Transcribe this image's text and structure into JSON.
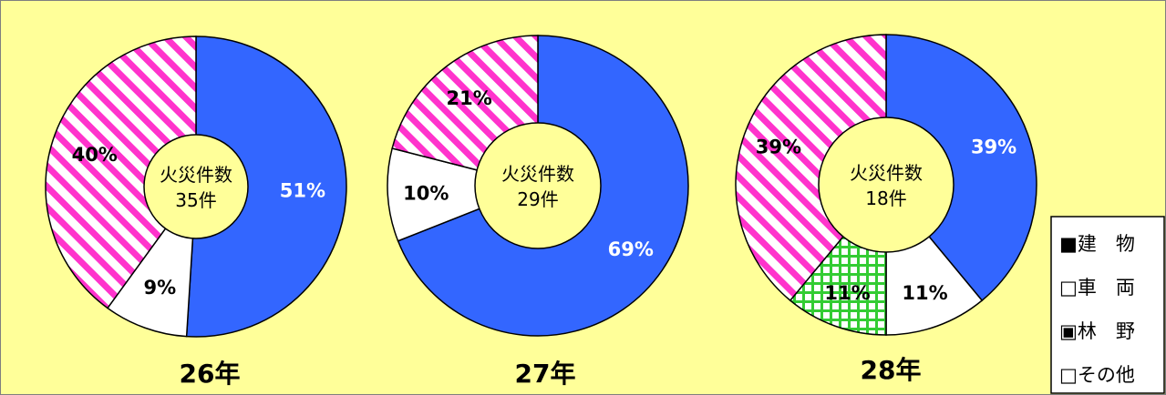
{
  "colors": {
    "background": "#FFFF99",
    "blue": "#3366FF",
    "white": "#FFFFFF",
    "green": "#33CC33",
    "pink": "#FF33CC",
    "outline": "#000000"
  },
  "chart_data": [
    {
      "type": "pie",
      "year_label": "26年",
      "center_label": [
        "火災件数",
        "35件"
      ],
      "categories": [
        "建 物",
        "車 両",
        "その他"
      ],
      "values": [
        51,
        9,
        40
      ],
      "value_labels": [
        "51%",
        "9%",
        "40%"
      ]
    },
    {
      "type": "pie",
      "year_label": "27年",
      "center_label": [
        "火災件数",
        "29件"
      ],
      "categories": [
        "建 物",
        "車 両",
        "その他"
      ],
      "values": [
        69,
        10,
        21
      ],
      "value_labels": [
        "69%",
        "10%",
        "21%"
      ]
    },
    {
      "type": "pie",
      "year_label": "28年",
      "center_label": [
        "火災件数",
        "18件"
      ],
      "categories": [
        "建 物",
        "車 両",
        "林 野",
        "その他"
      ],
      "values": [
        39,
        11,
        11,
        39
      ],
      "value_labels": [
        "39%",
        "11%",
        "11%",
        "39%"
      ]
    }
  ],
  "legend": {
    "placement": "bottom-right",
    "items": [
      {
        "label": "■建　物",
        "fill": "blue"
      },
      {
        "label": "□車　両",
        "fill": "white"
      },
      {
        "label": "▣林　野",
        "fill": "green"
      },
      {
        "label": "□その他",
        "fill": "pink"
      }
    ]
  }
}
